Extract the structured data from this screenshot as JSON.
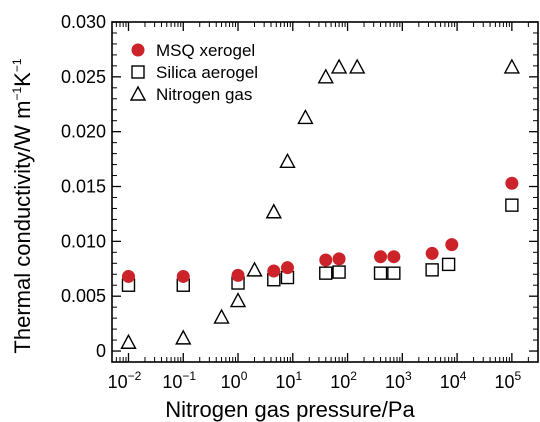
{
  "chart_data": {
    "type": "scatter",
    "xlabel": "Nitrogen gas pressure/Pa",
    "ylabel": {
      "prefix": "Thermal conductivity/W m",
      "exp1": "−1",
      "mid": "K",
      "exp2": "−1"
    },
    "xscale": "log",
    "xlim": [
      0.005,
      300000
    ],
    "ylim": [
      -0.001,
      0.03
    ],
    "x_ticks": [
      {
        "value": 0.01,
        "base": "10",
        "exp": "−2"
      },
      {
        "value": 0.1,
        "base": "10",
        "exp": "−1"
      },
      {
        "value": 1,
        "base": "10",
        "exp": "0"
      },
      {
        "value": 10,
        "base": "10",
        "exp": "1"
      },
      {
        "value": 100,
        "base": "10",
        "exp": "2"
      },
      {
        "value": 1000,
        "base": "10",
        "exp": "3"
      },
      {
        "value": 10000,
        "base": "10",
        "exp": "4"
      },
      {
        "value": 100000,
        "base": "10",
        "exp": "5"
      }
    ],
    "y_ticks": [
      {
        "value": 0,
        "label": "0"
      },
      {
        "value": 0.005,
        "label": "0.005"
      },
      {
        "value": 0.01,
        "label": "0.010"
      },
      {
        "value": 0.015,
        "label": "0.015"
      },
      {
        "value": 0.02,
        "label": "0.020"
      },
      {
        "value": 0.025,
        "label": "0.025"
      },
      {
        "value": 0.03,
        "label": "0.030"
      }
    ],
    "legend_position": "top-left",
    "series": [
      {
        "name": "MSQ xerogel",
        "marker": "filled-circle",
        "color": "#cc2229",
        "points": [
          [
            0.01,
            0.0068
          ],
          [
            0.1,
            0.0068
          ],
          [
            1,
            0.0069
          ],
          [
            4.5,
            0.0073
          ],
          [
            8,
            0.0076
          ],
          [
            40,
            0.0083
          ],
          [
            70,
            0.0084
          ],
          [
            400,
            0.0086
          ],
          [
            700,
            0.0086
          ],
          [
            3500,
            0.0089
          ],
          [
            8000,
            0.0097
          ],
          [
            100000,
            0.0153
          ]
        ]
      },
      {
        "name": "Silica aerogel",
        "marker": "open-square",
        "color": "#000000",
        "points": [
          [
            0.01,
            0.006
          ],
          [
            0.1,
            0.006
          ],
          [
            1,
            0.0062
          ],
          [
            4.5,
            0.0065
          ],
          [
            8,
            0.0067
          ],
          [
            40,
            0.0071
          ],
          [
            70,
            0.0072
          ],
          [
            400,
            0.0071
          ],
          [
            700,
            0.0071
          ],
          [
            3500,
            0.0074
          ],
          [
            7000,
            0.0079
          ],
          [
            100000,
            0.0133
          ]
        ]
      },
      {
        "name": "Nitrogen gas",
        "marker": "open-triangle",
        "color": "#000000",
        "points": [
          [
            0.01,
            0.0008
          ],
          [
            0.1,
            0.0012
          ],
          [
            0.5,
            0.0031
          ],
          [
            1,
            0.0046
          ],
          [
            2,
            0.0074
          ],
          [
            4.5,
            0.0127
          ],
          [
            8,
            0.0173
          ],
          [
            17,
            0.0213
          ],
          [
            40,
            0.025
          ],
          [
            70,
            0.0259
          ],
          [
            150,
            0.0259
          ],
          [
            100000,
            0.0259
          ]
        ]
      }
    ]
  }
}
